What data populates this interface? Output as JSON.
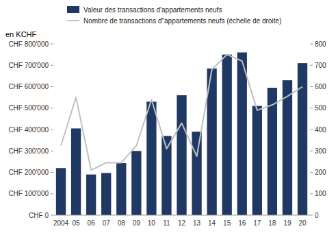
{
  "chart_data": {
    "type": "bar",
    "ylabel": "en KCHF",
    "categories": [
      "2004",
      "05",
      "06",
      "07",
      "08",
      "09",
      "10",
      "11",
      "12",
      "13",
      "14",
      "15",
      "16",
      "17",
      "18",
      "19",
      "20"
    ],
    "series": [
      {
        "name": "Valeur des transactions d'appartements neufs",
        "type": "bar",
        "color": "#1f3864",
        "values": [
          220000,
          405000,
          190000,
          197000,
          243000,
          300000,
          530000,
          370000,
          560000,
          390000,
          685000,
          750000,
          760000,
          510000,
          595000,
          630000,
          710000
        ]
      },
      {
        "name": "Nombre de transactions d\"appartements neufs (échelle de droite)",
        "type": "line",
        "color": "#c0c0c0",
        "axis": "y2",
        "values": [
          325,
          550,
          210,
          245,
          245,
          325,
          540,
          310,
          430,
          275,
          680,
          750,
          720,
          490,
          515,
          555,
          600
        ]
      }
    ],
    "ylim": [
      0,
      800000
    ],
    "yticks": [
      {
        "value": 0,
        "label": "CHF 0"
      },
      {
        "value": 100000,
        "label": "CHF 100'000"
      },
      {
        "value": 200000,
        "label": "CHF 200'000"
      },
      {
        "value": 300000,
        "label": "CHF 300'000"
      },
      {
        "value": 400000,
        "label": "CHF 400'000"
      },
      {
        "value": 500000,
        "label": "CHF 500'000"
      },
      {
        "value": 600000,
        "label": "CHF 600'000"
      },
      {
        "value": 700000,
        "label": "CHF 700'000"
      },
      {
        "value": 800000,
        "label": "CHF 800'000"
      }
    ],
    "y2lim": [
      0,
      800
    ],
    "y2ticks": [
      0,
      100,
      200,
      300,
      400,
      500,
      600,
      700,
      800
    ],
    "grid": false,
    "legend": "top"
  }
}
